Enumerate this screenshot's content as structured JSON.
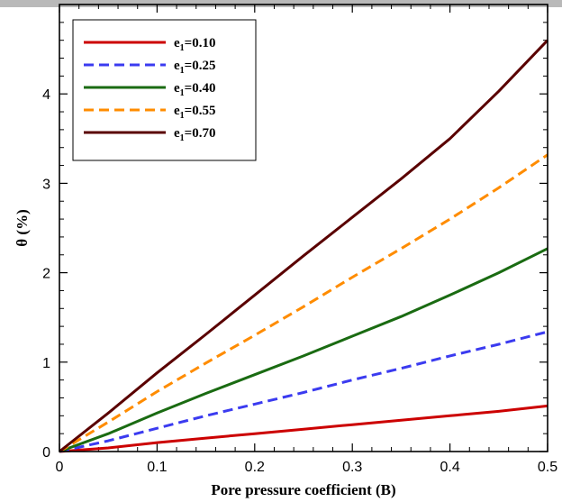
{
  "chart_data": {
    "type": "line",
    "xlabel": "Pore pressure coefficient (B)",
    "ylabel": "θ (%)",
    "xlim": [
      0,
      0.5
    ],
    "ylim": [
      0,
      5
    ],
    "xticks": [
      0,
      0.1,
      0.2,
      0.3,
      0.4,
      0.5
    ],
    "xtick_labels": [
      "0",
      "0.1",
      "0.2",
      "0.3",
      "0.4",
      "0.5"
    ],
    "yticks": [
      0,
      1,
      2,
      3,
      4
    ],
    "ytick_labels": [
      "0",
      "1",
      "2",
      "3",
      "4"
    ],
    "grid": false,
    "legend_position": "top-left",
    "x": [
      0,
      0.05,
      0.1,
      0.15,
      0.2,
      0.25,
      0.3,
      0.35,
      0.4,
      0.45,
      0.5
    ],
    "series": [
      {
        "name": "e1=0.10",
        "label_main": "e",
        "label_sub": "1",
        "label_rest": "=0.10",
        "color": "#cc0000",
        "dash": "solid",
        "values": [
          0.0,
          0.04,
          0.1,
          0.15,
          0.2,
          0.25,
          0.3,
          0.35,
          0.4,
          0.45,
          0.51
        ]
      },
      {
        "name": "e1=0.25",
        "label_main": "e",
        "label_sub": "1",
        "label_rest": "=0.25",
        "color": "#3b3bf0",
        "dash": "dashed",
        "values": [
          0.0,
          0.12,
          0.26,
          0.4,
          0.53,
          0.66,
          0.8,
          0.93,
          1.07,
          1.2,
          1.34
        ]
      },
      {
        "name": "e1=0.40",
        "label_main": "e",
        "label_sub": "1",
        "label_rest": "=0.40",
        "color": "#1a6b12",
        "dash": "solid",
        "values": [
          0.0,
          0.2,
          0.43,
          0.65,
          0.86,
          1.07,
          1.29,
          1.51,
          1.75,
          2.0,
          2.27
        ]
      },
      {
        "name": "e1=0.55",
        "label_main": "e",
        "label_sub": "1",
        "label_rest": "=0.55",
        "color": "#ff8c00",
        "dash": "dashed",
        "values": [
          0.0,
          0.33,
          0.67,
          0.99,
          1.3,
          1.62,
          1.95,
          2.27,
          2.6,
          2.95,
          3.32
        ]
      },
      {
        "name": "e1=0.70",
        "label_main": "e",
        "label_sub": "1",
        "label_rest": "=0.70",
        "color": "#5a0000",
        "dash": "solid",
        "values": [
          0.0,
          0.43,
          0.88,
          1.31,
          1.75,
          2.19,
          2.62,
          3.05,
          3.5,
          4.03,
          4.6
        ]
      }
    ]
  }
}
